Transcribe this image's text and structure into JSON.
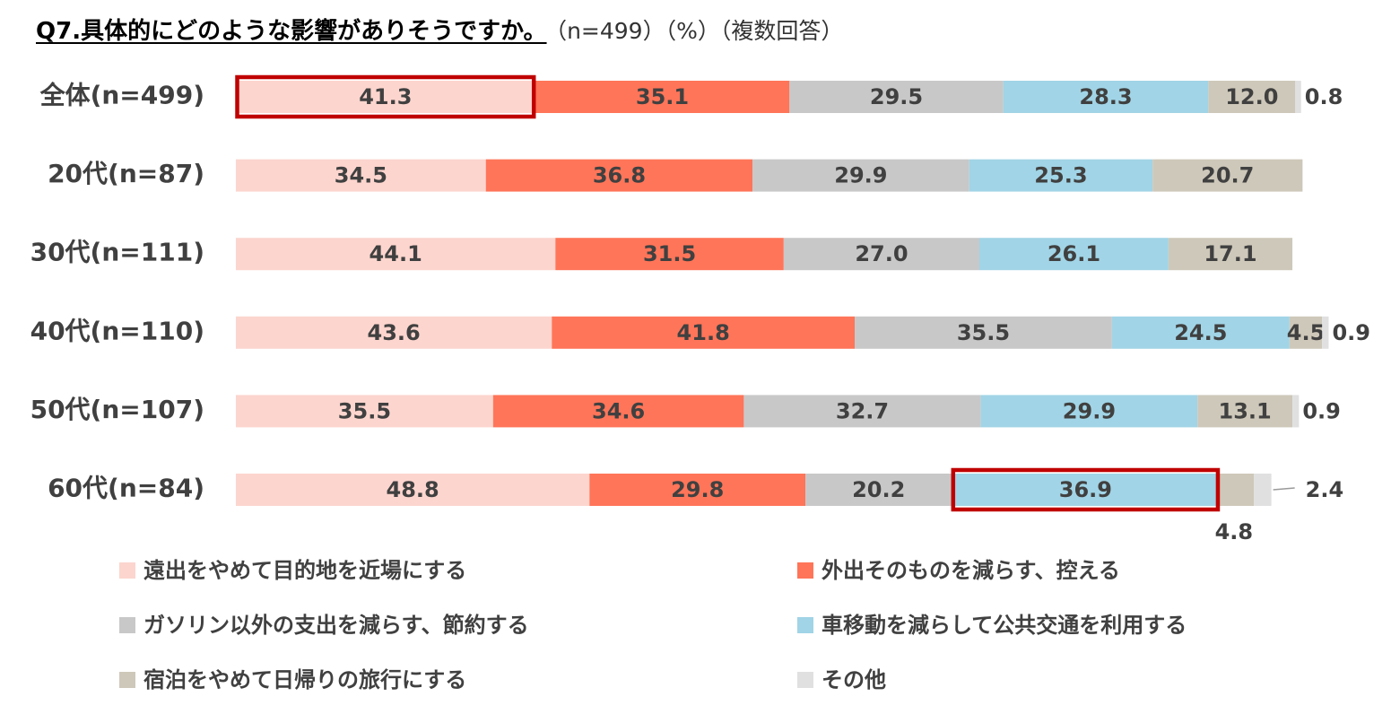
{
  "title": "Q7.具体的にどのような影響がありそうですか。",
  "title_note": "（n=499）（%）（複数回答）",
  "chart_data": {
    "type": "bar",
    "orientation": "horizontal",
    "stacked": true,
    "categories": [
      "全体(n=499)",
      "20代(n=87)",
      "30代(n=111)",
      "40代(n=110)",
      "50代(n=107)",
      "60代(n=84)"
    ],
    "series": [
      {
        "name": "遠出をやめて目的地を近場にする",
        "color": "#FCD5CE",
        "values": [
          41.3,
          34.5,
          44.1,
          43.6,
          35.5,
          48.8
        ]
      },
      {
        "name": "外出そのものを減らす、控える",
        "color": "#FF7559",
        "values": [
          35.1,
          36.8,
          31.5,
          41.8,
          34.6,
          29.8
        ]
      },
      {
        "name": "ガソリン以外の支出を減らす、節約する",
        "color": "#C8C8C8",
        "values": [
          29.5,
          29.9,
          27.0,
          35.5,
          32.7,
          20.2
        ]
      },
      {
        "name": "車移動を減らして公共交通を利用する",
        "color": "#A1D4E6",
        "values": [
          28.3,
          25.3,
          26.1,
          24.5,
          29.9,
          36.9
        ]
      },
      {
        "name": "宿泊をやめて日帰りの旅行にする",
        "color": "#CEC8BA",
        "values": [
          12.0,
          20.7,
          17.1,
          4.5,
          13.1,
          4.8
        ]
      },
      {
        "name": "その他",
        "color": "#E0E0E0",
        "values": [
          0.8,
          null,
          null,
          0.9,
          0.9,
          2.4
        ]
      }
    ],
    "highlight_color": "#C00000",
    "highlights": [
      {
        "category": "全体(n=499)",
        "series": "遠出をやめて目的地を近場にする"
      },
      {
        "category": "60代(n=84)",
        "series": "車移動を減らして公共交通を利用する"
      }
    ],
    "legend_position": "bottom",
    "grid": false
  }
}
